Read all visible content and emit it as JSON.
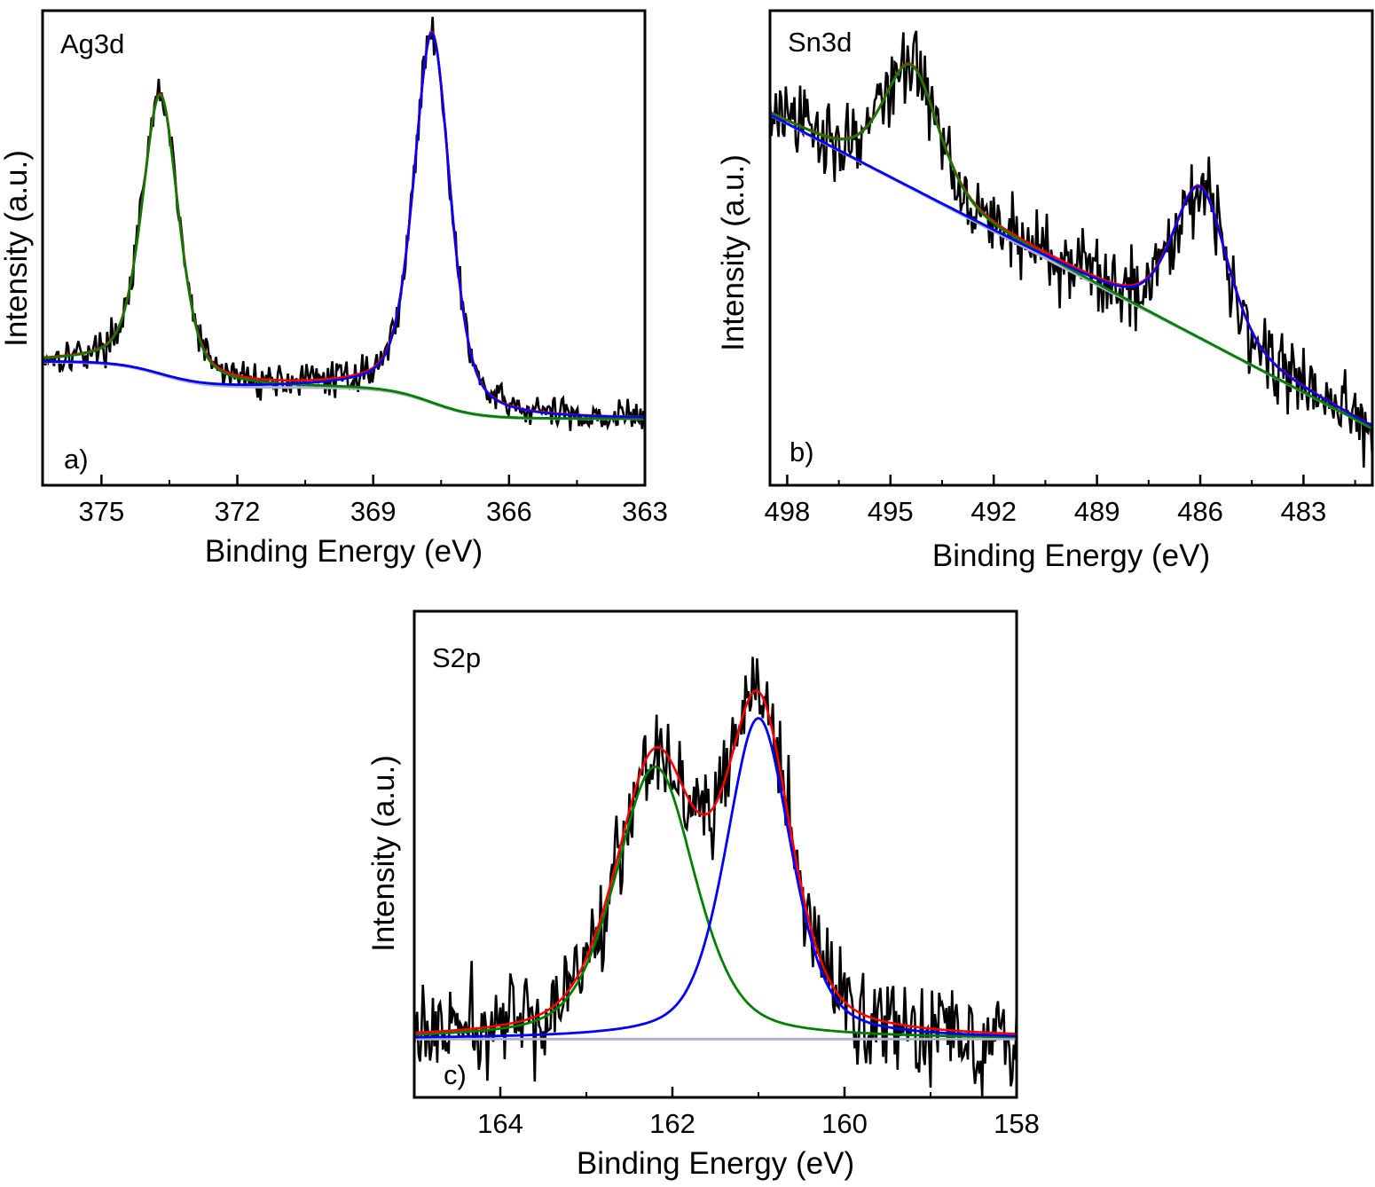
{
  "chart_data": [
    {
      "panel_label": "a)",
      "element_label": "Ag3d",
      "type": "line",
      "xlabel": "Binding Energy (eV)",
      "ylabel": "Intensity (a.u.)",
      "xlim": [
        376.3,
        363
      ],
      "x_reversed": true,
      "ylim": [
        0,
        100
      ],
      "xticks": [
        375,
        372,
        369,
        366,
        363
      ],
      "xtick_labels": [
        "375",
        "372",
        "369",
        "366",
        "363"
      ],
      "series_colors": {
        "raw": "#000000",
        "envelope": "#ff0000",
        "fit_3d5_2": "#0000ff",
        "fit_3d3_2": "#008000",
        "background": "#b0b0c8"
      },
      "peaks": [
        {
          "component": "fit_3d3_2",
          "center": 373.7,
          "height": 59,
          "fwhm": 0.95
        },
        {
          "component": "fit_3d5_2",
          "center": 367.7,
          "height": 78,
          "fwhm": 0.95
        }
      ],
      "background": {
        "high_be_level": 26,
        "low_be_level": 14,
        "step_centers": [
          373.7,
          367.7
        ]
      },
      "noise_amplitude": 2.6,
      "legend": "none",
      "grid": false
    },
    {
      "panel_label": "b)",
      "element_label": "Sn3d",
      "type": "line",
      "xlabel": "Binding Energy (eV)",
      "ylabel": "Intensity (a.u.)",
      "xlim": [
        498.5,
        481
      ],
      "x_reversed": true,
      "ylim": [
        0,
        100
      ],
      "xticks": [
        498,
        495,
        492,
        489,
        486,
        483
      ],
      "xtick_labels": [
        "498",
        "495",
        "492",
        "489",
        "486",
        "483"
      ],
      "series_colors": {
        "raw": "#000000",
        "envelope": "#ff0000",
        "fit_3d3_2": "#008000",
        "fit_3d5_2": "#0000ff",
        "background": "#b0b0c8"
      },
      "peaks": [
        {
          "component": "fit_3d3_2",
          "center": 494.4,
          "height": 26,
          "fwhm": 1.9
        },
        {
          "component": "fit_3d5_2",
          "center": 486.0,
          "height": 32,
          "fwhm": 1.9
        }
      ],
      "background": {
        "linear_from": [
          498.5,
          78
        ],
        "linear_to": [
          481,
          12
        ]
      },
      "noise_amplitude": 6,
      "legend": "none",
      "grid": false
    },
    {
      "panel_label": "c)",
      "element_label": "S2p",
      "type": "line",
      "xlabel": "Binding Energy (eV)",
      "ylabel": "Intensity (a.u.)",
      "xlim": [
        165,
        158
      ],
      "x_reversed": true,
      "ylim": [
        0,
        100
      ],
      "xticks": [
        164,
        162,
        160,
        158
      ],
      "xtick_labels": [
        "164",
        "162",
        "160",
        "158"
      ],
      "series_colors": {
        "raw": "#000000",
        "envelope": "#ff0000",
        "fit_2p1_2": "#008000",
        "fit_2p3_2": "#0000ff",
        "background": "#b0b0c8"
      },
      "peaks": [
        {
          "component": "fit_2p1_2",
          "center": 162.2,
          "height": 56,
          "fwhm": 1.1
        },
        {
          "component": "fit_2p3_2",
          "center": 161.0,
          "height": 66,
          "fwhm": 0.9
        }
      ],
      "background": {
        "level": 12
      },
      "noise_amplitude": 7,
      "legend": "none",
      "grid": false
    }
  ]
}
